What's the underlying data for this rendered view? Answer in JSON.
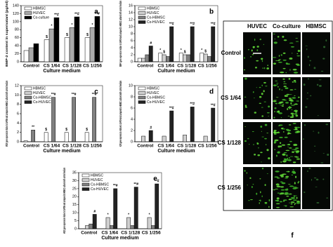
{
  "chart_data": [
    {
      "type": "bar",
      "panel_label": "a",
      "ylabel": "BMP-2 content in supernatant (pg/ml)",
      "xlabel": "Culture medium",
      "categories": [
        "Control",
        "CS 1/64",
        "CS 1/128",
        "CS 1/256"
      ],
      "ylim": [
        0,
        140
      ],
      "yticks": [
        0,
        20,
        40,
        60,
        80,
        100,
        120,
        140
      ],
      "series": [
        {
          "name": "HBMSC",
          "color": "#ffffff",
          "values": [
            28,
            55,
            60,
            60
          ],
          "markers": [
            null,
            "$",
            "$",
            "$"
          ]
        },
        {
          "name": "HUVEC",
          "color": "#aaaaaa",
          "values": [
            35,
            82,
            85,
            85
          ],
          "markers": [
            null,
            "*",
            "*",
            "*"
          ]
        },
        {
          "name": "Co-culture",
          "color": "#000000",
          "values": [
            45,
            110,
            112,
            113
          ],
          "markers": [
            null,
            "**#",
            "**#",
            "**#"
          ]
        }
      ]
    },
    {
      "type": "bar",
      "panel_label": "b",
      "ylabel": "BMP-2 gene expression relative to GAPDH and compared to HBMSC cultured with control medium",
      "xlabel": "Culture medium",
      "categories": [
        "Control",
        "CS 1/64",
        "CS 1/128",
        "CS 1/256"
      ],
      "ylim": [
        0,
        16
      ],
      "yticks": [
        0,
        2,
        4,
        6,
        8,
        10,
        12,
        14,
        16
      ],
      "series": [
        {
          "name": "HBMSC",
          "color": "#ffffff",
          "values": [
            1,
            2.5,
            2.5,
            2.5
          ],
          "markers": [
            null,
            "*",
            "*",
            "*"
          ]
        },
        {
          "name": "HUVEC",
          "color": "#d0d0d0",
          "values": [
            1,
            2,
            2,
            2.2
          ],
          "markers": [
            null,
            "$",
            "$",
            "$"
          ]
        },
        {
          "name": "Co-HBMSC",
          "color": "#808080",
          "values": [
            2,
            1.5,
            2,
            1.5
          ],
          "markers": [
            null,
            null,
            null,
            null
          ]
        },
        {
          "name": "Co-HUVEC",
          "color": "#222222",
          "values": [
            4.5,
            10,
            10,
            10
          ],
          "markers": [
            "#",
            "**#",
            "**#",
            "**#"
          ]
        }
      ]
    },
    {
      "type": "bar",
      "panel_label": "c",
      "ylabel": "VEGF gene expression relative to GAPDH and compared to HBMSC cultured with control medium",
      "xlabel": "Culture medium",
      "categories": [
        "Control",
        "CS 1/64",
        "CS 1/128",
        "CS 1/256"
      ],
      "ylim": [
        0,
        12
      ],
      "yticks": [
        0,
        2,
        4,
        6,
        8,
        10,
        12
      ],
      "series": [
        {
          "name": "HBMSC",
          "color": "#ffffff",
          "values": [
            0.2,
            2,
            2,
            2
          ],
          "markers": [
            null,
            "$",
            "$",
            "$"
          ]
        },
        {
          "name": "HUVEC",
          "color": "#d0d0d0",
          "values": [
            0,
            0,
            0,
            0
          ],
          "markers": [
            null,
            null,
            null,
            null
          ]
        },
        {
          "name": "Co-HBMSC",
          "color": "#808080",
          "values": [
            2.5,
            9.5,
            9.5,
            9.5
          ],
          "markers": [
            "**",
            "**#",
            "**#",
            "**#"
          ]
        },
        {
          "name": "Co-HUVEC",
          "color": "#222222",
          "values": [
            0,
            0,
            0,
            0
          ],
          "markers": [
            null,
            null,
            null,
            null
          ]
        }
      ]
    },
    {
      "type": "bar",
      "panel_label": "d",
      "ylabel": "KDR gene expression relative to GAPDH and compared to HBMSC cultured with control medium",
      "xlabel": "Culture medium",
      "categories": [
        "Control",
        "CS 1/64",
        "CS 1/128",
        "CS 1/256"
      ],
      "ylim": [
        0,
        10
      ],
      "yticks": [
        0,
        2,
        4,
        6,
        8,
        10
      ],
      "series": [
        {
          "name": "HBMSC",
          "color": "#ffffff",
          "values": [
            0,
            0,
            0,
            0
          ],
          "markers": [
            null,
            null,
            null,
            null
          ]
        },
        {
          "name": "HUVEC",
          "color": "#d0d0d0",
          "values": [
            1,
            1,
            1.2,
            1
          ],
          "markers": [
            null,
            null,
            null,
            null
          ]
        },
        {
          "name": "Co-HBMSC",
          "color": "#808080",
          "values": [
            0,
            0,
            0,
            0
          ],
          "markers": [
            null,
            null,
            null,
            null
          ]
        },
        {
          "name": "Co-HUVEC",
          "color": "#222222",
          "values": [
            2,
            5.5,
            6.2,
            6
          ],
          "markers": [
            "#",
            "**#",
            "**#",
            "**#"
          ]
        }
      ]
    },
    {
      "type": "bar",
      "panel_label": "e",
      "ylabel": "eNOS gene expression relative to GAPDH and compared to HBMSC cultured with control medium",
      "xlabel": "Culture medium",
      "categories": [
        "Control",
        "CS 1/64",
        "CS 1/128",
        "CS 1/256"
      ],
      "ylim": [
        0,
        35
      ],
      "yticks": [
        0,
        5,
        10,
        15,
        20,
        25,
        30,
        35
      ],
      "series": [
        {
          "name": "HBMSC",
          "color": "#ffffff",
          "values": [
            0,
            0,
            0,
            0
          ],
          "markers": [
            null,
            null,
            null,
            null
          ]
        },
        {
          "name": "HUVEC",
          "color": "#d0d0d0",
          "values": [
            2,
            7,
            7,
            7
          ],
          "markers": [
            null,
            "*",
            "*",
            "*"
          ]
        },
        {
          "name": "Co-HBMSC",
          "color": "#808080",
          "values": [
            3,
            2,
            2,
            2
          ],
          "markers": [
            null,
            null,
            null,
            null
          ]
        },
        {
          "name": "Co-HUVEC",
          "color": "#222222",
          "values": [
            9,
            25,
            26,
            28
          ],
          "markers": [
            "#",
            "**#",
            "**#",
            "**#"
          ]
        }
      ]
    }
  ],
  "image_panel": {
    "label": "f",
    "columns": [
      "HUVEC",
      "Co-culture",
      "HBMSC"
    ],
    "rows": [
      "Control",
      "CS 1/64",
      "CS 1/128",
      "CS 1/256"
    ]
  }
}
